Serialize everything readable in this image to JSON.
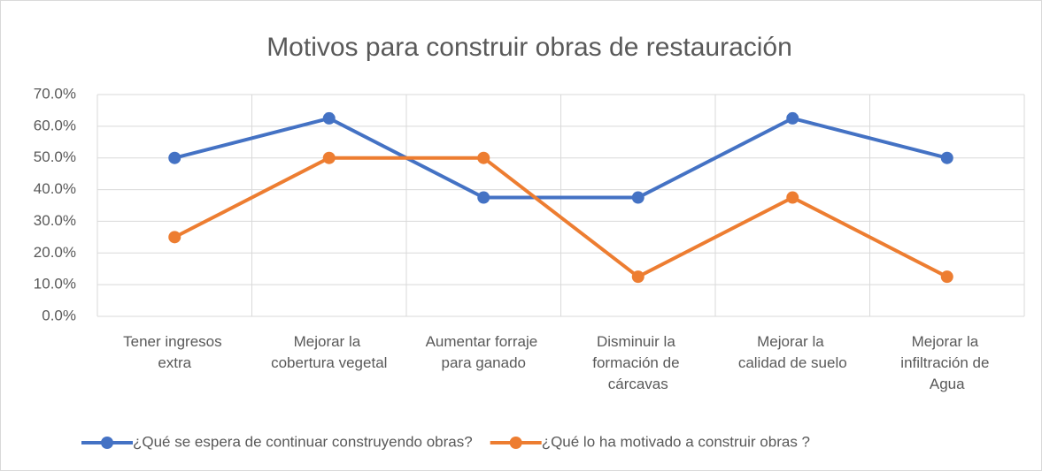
{
  "chart_data": {
    "type": "line",
    "title": "Motivos para construir obras de restauración",
    "categories": [
      "Tener ingresos extra",
      "Mejorar la cobertura vegetal",
      "Aumentar forraje para ganado",
      "Disminuir la formación de cárcavas",
      "Mejorar la calidad de suelo",
      "Mejorar la infiltración de Agua"
    ],
    "series": [
      {
        "name": "¿Qué se espera de continuar construyendo obras?",
        "color": "#4472c4",
        "values": [
          50,
          62.5,
          37.5,
          37.5,
          62.5,
          50
        ]
      },
      {
        "name": "¿Qué lo ha motivado a construir obras ?",
        "color": "#ed7d31",
        "values": [
          25,
          50,
          50,
          12.5,
          37.5,
          12.5
        ]
      }
    ],
    "ylim": [
      0,
      70
    ],
    "yticks": [
      {
        "value": 0,
        "label": "0.0%"
      },
      {
        "value": 10,
        "label": "10.0%"
      },
      {
        "value": 20,
        "label": "20.0%"
      },
      {
        "value": 30,
        "label": "30.0%"
      },
      {
        "value": 40,
        "label": "40.0%"
      },
      {
        "value": 50,
        "label": "50.0%"
      },
      {
        "value": 60,
        "label": "60.0%"
      },
      {
        "value": 70,
        "label": "70.0%"
      }
    ],
    "grid": true,
    "legend": "bottom"
  }
}
